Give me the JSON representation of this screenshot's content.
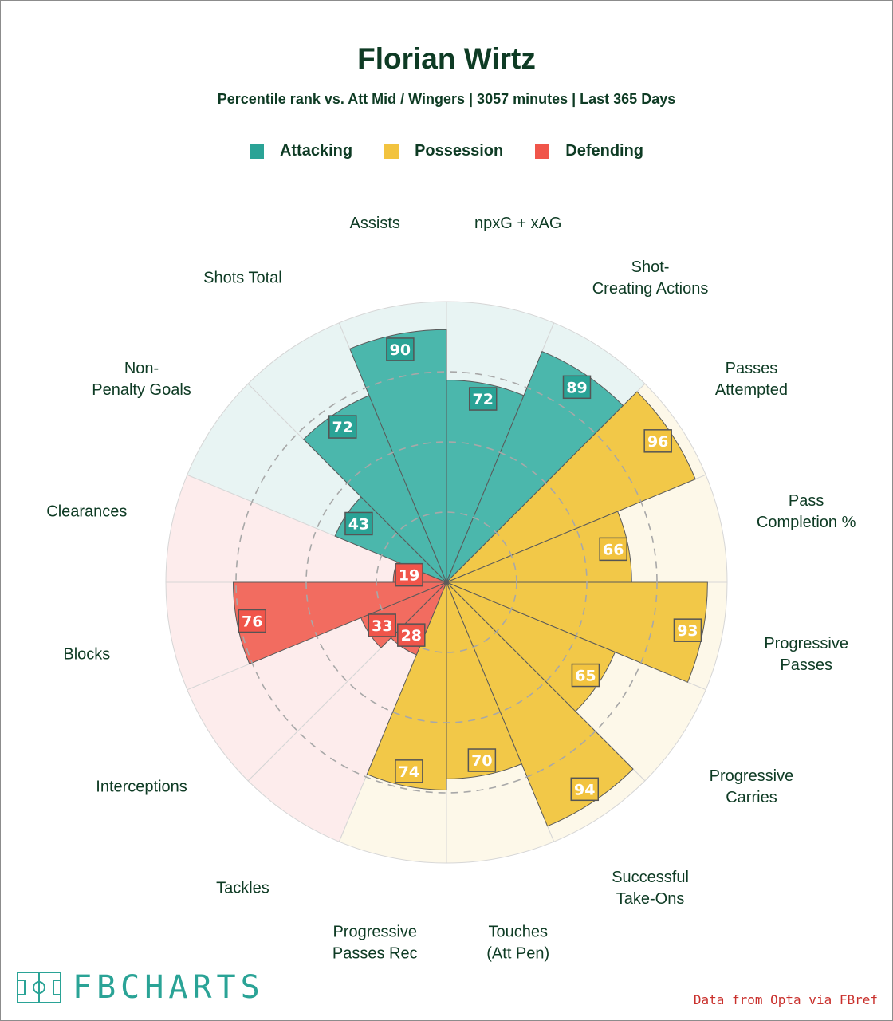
{
  "branding": {
    "logo_text": "FBCHARTS",
    "source": "Data from Opta via FBref"
  },
  "chart_data": {
    "type": "pie",
    "variant": "pizza-radial-bar",
    "title": "Florian Wirtz",
    "subtitle": "Percentile rank vs. Att Mid / Wingers | 3057 minutes | Last 365 Days",
    "value_range": [
      0,
      100
    ],
    "grid_rings": [
      25,
      50,
      75
    ],
    "legend": [
      {
        "name": "Attacking",
        "color": "#2aa396"
      },
      {
        "name": "Possession",
        "color": "#f2c33f"
      },
      {
        "name": "Defending",
        "color": "#f0554a"
      }
    ],
    "categories_style": {
      "Attacking": {
        "fill": "#4bb7ac",
        "bg": "#e8f4f3",
        "badge": "#2aa396"
      },
      "Possession": {
        "fill": "#f2c848",
        "bg": "#fdf8e9",
        "badge": "#f2c33f"
      },
      "Defending": {
        "fill": "#f26c60",
        "bg": "#fdecec",
        "badge": "#f0554a"
      }
    },
    "metrics": [
      {
        "label": "npxG + xAG",
        "value": 72,
        "category": "Attacking"
      },
      {
        "label": "Shot-Creating Actions",
        "value": 89,
        "category": "Attacking"
      },
      {
        "label": "Passes Attempted",
        "value": 96,
        "category": "Possession"
      },
      {
        "label": "Pass Completion %",
        "value": 66,
        "category": "Possession"
      },
      {
        "label": "Progressive Passes",
        "value": 93,
        "category": "Possession"
      },
      {
        "label": "Progressive Carries",
        "value": 65,
        "category": "Possession"
      },
      {
        "label": "Successful Take-Ons",
        "value": 94,
        "category": "Possession"
      },
      {
        "label": "Touches (Att Pen)",
        "value": 70,
        "category": "Possession"
      },
      {
        "label": "Progressive Passes Rec",
        "value": 74,
        "category": "Possession"
      },
      {
        "label": "Tackles",
        "value": 28,
        "category": "Defending"
      },
      {
        "label": "Interceptions",
        "value": 33,
        "category": "Defending"
      },
      {
        "label": "Blocks",
        "value": 76,
        "category": "Defending"
      },
      {
        "label": "Clearances",
        "value": 19,
        "category": "Defending"
      },
      {
        "label": "Non-Penalty Goals",
        "value": 43,
        "category": "Attacking"
      },
      {
        "label": "Shots Total",
        "value": 72,
        "category": "Attacking"
      },
      {
        "label": "Assists",
        "value": 90,
        "category": "Attacking"
      }
    ]
  }
}
